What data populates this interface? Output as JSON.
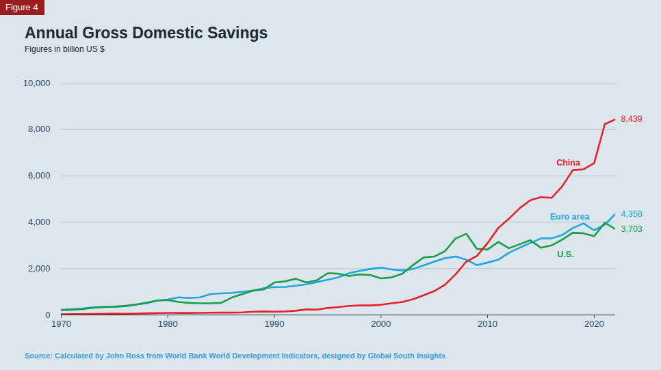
{
  "chart_data": {
    "type": "line",
    "label": "Figure 4",
    "title": "Annual Gross Domestic Savings",
    "subtitle": "Figures in billion US $",
    "source": "Source: Calculated by John Ross from World Bank World Development Indicators, designed by Global South Insights",
    "x": [
      1970,
      1971,
      1972,
      1973,
      1974,
      1975,
      1976,
      1977,
      1978,
      1979,
      1980,
      1981,
      1982,
      1983,
      1984,
      1985,
      1986,
      1987,
      1988,
      1989,
      1990,
      1991,
      1992,
      1993,
      1994,
      1995,
      1996,
      1997,
      1998,
      1999,
      2000,
      2001,
      2002,
      2003,
      2004,
      2005,
      2006,
      2007,
      2008,
      2009,
      2010,
      2011,
      2012,
      2013,
      2014,
      2015,
      2016,
      2017,
      2018,
      2019,
      2020,
      2021,
      2022
    ],
    "xlim": [
      1970,
      2022
    ],
    "xticks": [
      1970,
      1980,
      1990,
      2000,
      2010,
      2020
    ],
    "ylim": [
      0,
      10000
    ],
    "yticks": [
      0,
      {
        "value": 2000,
        "label": "2,000"
      },
      {
        "value": 4000,
        "label": "4,000"
      },
      {
        "value": 6000,
        "label": "6,000"
      },
      {
        "value": 8000,
        "label": "8,000"
      },
      {
        "value": 10000,
        "label": "10,000"
      }
    ],
    "grid": true,
    "series": [
      {
        "name": "Euro area",
        "color": "#1fa8e0",
        "values": [
          230,
          250,
          280,
          330,
          350,
          360,
          400,
          440,
          500,
          620,
          660,
          760,
          730,
          760,
          900,
          930,
          950,
          1000,
          1050,
          1150,
          1200,
          1210,
          1260,
          1320,
          1420,
          1520,
          1620,
          1800,
          1900,
          1980,
          2040,
          1960,
          1920,
          1980,
          2140,
          2300,
          2450,
          2520,
          2380,
          2150,
          2260,
          2380,
          2680,
          2900,
          3100,
          3300,
          3300,
          3450,
          3750,
          3950,
          3650,
          3900,
          4358
        ],
        "value_labels": [
          null,
          null,
          null,
          null,
          null,
          null,
          null,
          null,
          null,
          null,
          null,
          null,
          null,
          null,
          null,
          null,
          null,
          null,
          null,
          null,
          null,
          null,
          null,
          null,
          null,
          null,
          null,
          null,
          null,
          null,
          null,
          null,
          null,
          null,
          null,
          null,
          null,
          null,
          null,
          null,
          null,
          null,
          null,
          null,
          null,
          null,
          null,
          null,
          null,
          null,
          null,
          null,
          "4,358"
        ]
      },
      {
        "name": "U.S.",
        "color": "#1a9e4a",
        "values": [
          200,
          220,
          250,
          310,
          340,
          350,
          380,
          450,
          530,
          620,
          640,
          560,
          520,
          500,
          500,
          520,
          750,
          900,
          1050,
          1100,
          1400,
          1450,
          1560,
          1400,
          1500,
          1800,
          1780,
          1680,
          1750,
          1720,
          1580,
          1620,
          1780,
          2150,
          2480,
          2520,
          2750,
          3300,
          3500,
          2850,
          2820,
          3150,
          2880,
          3050,
          3220,
          2900,
          3000,
          3250,
          3550,
          3520,
          3400,
          3980,
          3703
        ],
        "value_labels": [
          null,
          null,
          null,
          null,
          null,
          null,
          null,
          null,
          null,
          null,
          null,
          null,
          null,
          null,
          null,
          null,
          null,
          null,
          null,
          null,
          null,
          null,
          null,
          null,
          null,
          null,
          null,
          null,
          null,
          null,
          null,
          null,
          null,
          null,
          null,
          null,
          null,
          null,
          null,
          null,
          null,
          null,
          null,
          null,
          null,
          null,
          null,
          null,
          null,
          null,
          null,
          null,
          "3,703"
        ]
      },
      {
        "name": "China",
        "color": "#e8202a",
        "values": [
          30,
          35,
          38,
          45,
          48,
          55,
          50,
          60,
          70,
          80,
          90,
          85,
          85,
          90,
          95,
          100,
          100,
          110,
          140,
          150,
          140,
          150,
          180,
          240,
          230,
          300,
          340,
          390,
          410,
          410,
          440,
          500,
          560,
          680,
          850,
          1030,
          1300,
          1750,
          2300,
          2550,
          3100,
          3750,
          4150,
          4600,
          4950,
          5080,
          5050,
          5550,
          6250,
          6280,
          6550,
          8230,
          8439
        ],
        "value_labels": [
          null,
          null,
          null,
          null,
          null,
          null,
          null,
          null,
          null,
          null,
          null,
          null,
          null,
          null,
          null,
          null,
          null,
          null,
          null,
          null,
          null,
          null,
          null,
          null,
          null,
          null,
          null,
          null,
          null,
          null,
          null,
          null,
          null,
          null,
          null,
          null,
          null,
          null,
          null,
          null,
          null,
          null,
          null,
          null,
          null,
          null,
          null,
          null,
          null,
          null,
          null,
          null,
          "8,439"
        ]
      }
    ]
  }
}
